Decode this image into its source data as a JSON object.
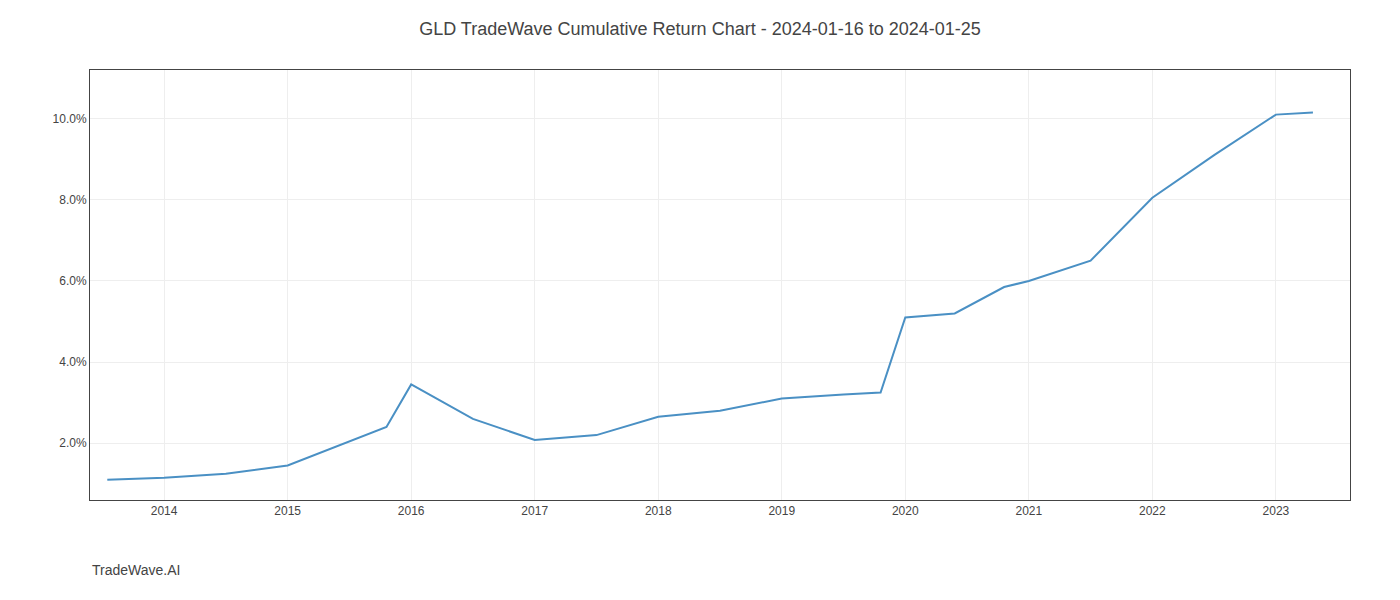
{
  "chart_data": {
    "type": "line",
    "title": "GLD TradeWave Cumulative Return Chart - 2024-01-16 to 2024-01-25",
    "annotations": [
      "TradeWave.AI"
    ],
    "x": [
      2013.54,
      2014.0,
      2014.5,
      2015.0,
      2015.8,
      2016.0,
      2016.5,
      2017.0,
      2017.5,
      2018.0,
      2018.5,
      2019.0,
      2019.5,
      2019.8,
      2020.0,
      2020.4,
      2020.8,
      2021.0,
      2021.5,
      2022.0,
      2022.5,
      2023.0,
      2023.3
    ],
    "values": [
      1.1,
      1.15,
      1.25,
      1.45,
      2.4,
      3.45,
      2.6,
      2.08,
      2.2,
      2.65,
      2.8,
      3.1,
      3.2,
      3.25,
      5.1,
      5.2,
      5.85,
      6.0,
      6.5,
      8.05,
      9.1,
      10.1,
      10.15
    ],
    "color": "#4a90c4",
    "xlim": [
      2013.4,
      2023.6
    ],
    "ylim": [
      0.6,
      11.2
    ],
    "xticks": [
      2014,
      2015,
      2016,
      2017,
      2018,
      2019,
      2020,
      2021,
      2022,
      2023
    ],
    "yticks": [
      {
        "value": 2.0,
        "label": "2.0%"
      },
      {
        "value": 4.0,
        "label": "4.0%"
      },
      {
        "value": 6.0,
        "label": "6.0%"
      },
      {
        "value": 8.0,
        "label": "8.0%"
      },
      {
        "value": 10.0,
        "label": "10.0%"
      }
    ],
    "grid": true
  }
}
